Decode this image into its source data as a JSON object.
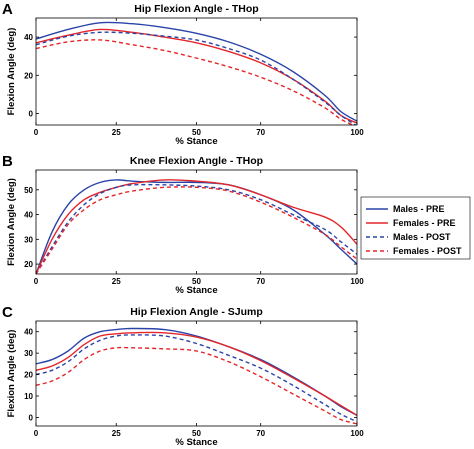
{
  "colors": {
    "males": "#2b44a8",
    "females": "#e3262a"
  },
  "legend": [
    {
      "label": "Males - PRE",
      "color": "#2b44a8",
      "dash": false
    },
    {
      "label": "Females - PRE",
      "color": "#e3262a",
      "dash": false
    },
    {
      "label": "Males - POST",
      "color": "#2b44a8",
      "dash": true
    },
    {
      "label": "Females - POST",
      "color": "#e3262a",
      "dash": true
    }
  ],
  "chart_data": [
    {
      "type": "line",
      "panel_label": "A",
      "title": "Hip Flexion Angle - THop",
      "xlabel": "% Stance",
      "ylabel": "Flexion Angle (deg)",
      "xlim": [
        0,
        100
      ],
      "ylim": [
        -6,
        50
      ],
      "xticks": [
        0,
        25,
        50,
        70,
        100
      ],
      "yticks": [
        0,
        20,
        40
      ],
      "x": [
        0,
        10,
        20,
        30,
        40,
        50,
        60,
        70,
        80,
        90,
        95,
        100
      ],
      "series": [
        {
          "name": "Males - PRE",
          "values": [
            39,
            44,
            47.5,
            47,
            45,
            42,
            37.5,
            31,
            22,
            9.5,
            1,
            -4
          ]
        },
        {
          "name": "Females - PRE",
          "values": [
            37,
            41,
            44,
            42.5,
            40,
            37,
            32.5,
            26.5,
            18,
            6.5,
            -1,
            -5
          ]
        },
        {
          "name": "Males - POST",
          "values": [
            36,
            40.5,
            42.5,
            42,
            40.5,
            38.5,
            34,
            28,
            18,
            6,
            -1,
            -6.5
          ]
        },
        {
          "name": "Females - POST",
          "values": [
            34,
            37.5,
            38.5,
            36,
            33,
            29,
            24.5,
            19,
            12,
            3,
            -3,
            -7
          ]
        }
      ]
    },
    {
      "type": "line",
      "panel_label": "B",
      "title": "Knee Flexion Angle - THop",
      "xlabel": "% Stance",
      "ylabel": "Flexion Angle (deg)",
      "xlim": [
        0,
        100
      ],
      "ylim": [
        16,
        58
      ],
      "xticks": [
        0,
        25,
        50,
        70,
        100
      ],
      "yticks": [
        20,
        30,
        40,
        50
      ],
      "x": [
        0,
        5,
        10,
        15,
        20,
        25,
        30,
        40,
        50,
        60,
        70,
        80,
        90,
        95,
        100
      ],
      "series": [
        {
          "name": "Males - PRE",
          "values": [
            16,
            33,
            44,
            50,
            53,
            54,
            53.5,
            53,
            53,
            52,
            48,
            42,
            32,
            26,
            20
          ]
        },
        {
          "name": "Females - PRE",
          "values": [
            16,
            30,
            40,
            46,
            49,
            51,
            52.5,
            54,
            53.5,
            52,
            48,
            43,
            39,
            35,
            28
          ]
        },
        {
          "name": "Males - POST",
          "values": [
            16,
            27,
            37,
            44,
            48.5,
            51,
            52,
            52,
            51.5,
            50,
            46,
            40,
            34,
            29,
            24
          ]
        },
        {
          "name": "Females - POST",
          "values": [
            16,
            26,
            36,
            42,
            46,
            48,
            49.5,
            51,
            51,
            49.5,
            45,
            39,
            32,
            27,
            22
          ]
        }
      ]
    },
    {
      "type": "line",
      "panel_label": "C",
      "title": "Hip Flexion Angle - SJump",
      "xlabel": "% Stance",
      "ylabel": "Flexion Angle (deg)",
      "xlim": [
        0,
        100
      ],
      "ylim": [
        -4,
        45
      ],
      "xticks": [
        0,
        25,
        50,
        70,
        100
      ],
      "yticks": [
        0,
        10,
        20,
        30,
        40
      ],
      "x": [
        0,
        5,
        10,
        15,
        20,
        25,
        30,
        40,
        50,
        60,
        70,
        80,
        90,
        95,
        100
      ],
      "series": [
        {
          "name": "Males - PRE",
          "values": [
            25,
            27,
            31,
            37,
            40,
            41,
            41.5,
            41,
            38,
            33,
            27,
            19,
            10,
            5,
            1
          ]
        },
        {
          "name": "Females - PRE",
          "values": [
            22,
            24,
            28,
            34,
            38,
            39,
            39.5,
            39.5,
            37.5,
            33,
            26.5,
            18.5,
            10,
            5.5,
            1
          ]
        },
        {
          "name": "Males - POST",
          "values": [
            20,
            22,
            26,
            32,
            36,
            38,
            38.5,
            38,
            34.5,
            29,
            23,
            15,
            6,
            1.5,
            -2
          ]
        },
        {
          "name": "Females - POST",
          "values": [
            15,
            17,
            21,
            27,
            31,
            32.5,
            32.5,
            32,
            31,
            26,
            19,
            11,
            3,
            -1,
            -3
          ]
        }
      ]
    }
  ]
}
